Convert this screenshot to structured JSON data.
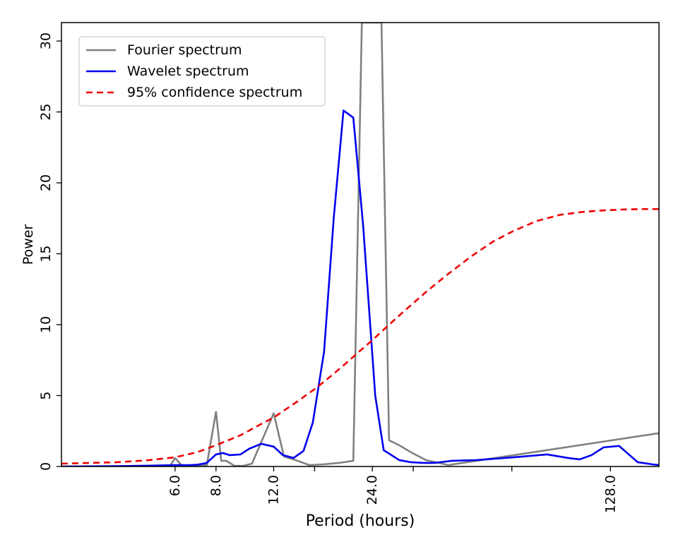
{
  "chart_data": {
    "type": "line",
    "title": "",
    "xlabel": "Period (hours)",
    "ylabel": "Power",
    "x_scale": "log2",
    "xlim": [
      2.7,
      180
    ],
    "ylim": [
      0,
      31.3
    ],
    "x_ticks": [
      6.0,
      8.0,
      12.0,
      24.0,
      128.0
    ],
    "x_tick_labels": [
      "6.0",
      "8.0",
      "12.0",
      "24.0",
      "128.0"
    ],
    "x_minor_ticks": [
      16.0,
      32.0,
      64.0
    ],
    "y_ticks": [
      0,
      5,
      10,
      15,
      20,
      25,
      30
    ],
    "y_tick_labels": [
      "0",
      "5",
      "10",
      "15",
      "20",
      "25",
      "30"
    ],
    "grid": false,
    "legend_position": "top-left",
    "series": [
      {
        "name": "Fourier spectrum",
        "color": "#808080",
        "style": "solid",
        "x": [
          2.7,
          5.8,
          6.0,
          6.3,
          6.7,
          7.5,
          8.0,
          8.3,
          8.6,
          9.1,
          9.7,
          10.3,
          12.0,
          12.9,
          14.0,
          15.4,
          17.0,
          19.0,
          21.0,
          22.3,
          23.4,
          25.6,
          27.0,
          29.0,
          31.5,
          35.0,
          41.0,
          180.0
        ],
        "values": [
          0.0,
          0.05,
          0.6,
          0.05,
          0.0,
          0.1,
          3.85,
          0.4,
          0.4,
          0.05,
          0.05,
          0.2,
          3.75,
          0.7,
          0.45,
          0.1,
          0.15,
          0.25,
          0.4,
          31.3,
          31.3,
          31.3,
          1.85,
          1.5,
          1.0,
          0.45,
          0.1,
          2.35
        ]
      },
      {
        "name": "Wavelet spectrum",
        "color": "#0000ee",
        "style": "solid",
        "x": [
          2.7,
          4.0,
          5.0,
          6.0,
          6.6,
          7.0,
          7.5,
          8.0,
          8.4,
          8.8,
          9.5,
          10.1,
          11.0,
          12.0,
          12.8,
          13.8,
          14.8,
          15.8,
          17.1,
          18.3,
          19.6,
          21.0,
          22.5,
          24.5,
          26.0,
          29.0,
          31.5,
          34.5,
          37.0,
          42.0,
          50.0,
          65.0,
          82.0,
          95.0,
          103.0,
          112.0,
          122.0,
          136.0,
          155.0,
          172.0,
          180.0
        ],
        "values": [
          0.0,
          0.02,
          0.06,
          0.1,
          0.1,
          0.12,
          0.25,
          0.85,
          0.95,
          0.8,
          0.85,
          1.25,
          1.6,
          1.4,
          0.8,
          0.6,
          1.1,
          3.1,
          8.1,
          17.5,
          25.1,
          24.6,
          17.0,
          5.0,
          1.15,
          0.45,
          0.3,
          0.25,
          0.25,
          0.4,
          0.45,
          0.65,
          0.85,
          0.6,
          0.5,
          0.8,
          1.35,
          1.45,
          0.3,
          0.15,
          0.1
        ]
      },
      {
        "name": "95% confidence spectrum",
        "color": "#ee0000",
        "style": "dashed",
        "x": [
          2.7,
          4.0,
          5.0,
          6.0,
          7.0,
          8.0,
          9.5,
          11.0,
          12.0,
          14.0,
          16.0,
          18.0,
          20.0,
          22.0,
          24.0,
          27.0,
          30.0,
          35.0,
          40.0,
          48.0,
          56.0,
          64.0,
          76.0,
          90.0,
          105.0,
          120.0,
          140.0,
          160.0,
          180.0
        ],
        "values": [
          0.2,
          0.3,
          0.45,
          0.65,
          1.0,
          1.5,
          2.2,
          3.0,
          3.45,
          4.5,
          5.45,
          6.4,
          7.3,
          8.15,
          8.9,
          10.0,
          10.95,
          12.3,
          13.4,
          14.8,
          15.85,
          16.55,
          17.3,
          17.75,
          17.95,
          18.05,
          18.12,
          18.15,
          18.15
        ]
      }
    ]
  }
}
